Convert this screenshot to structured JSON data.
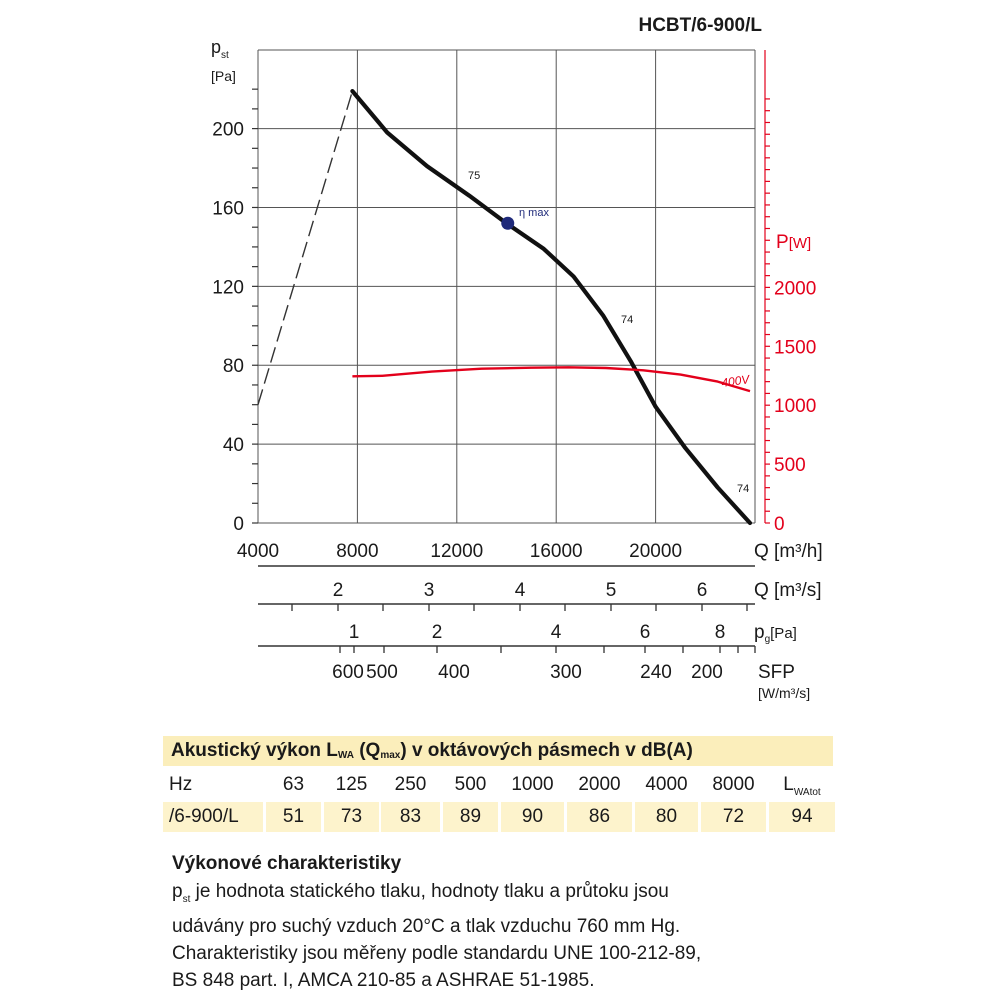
{
  "model_title": "HCBT/6-900/L",
  "chart_data": {
    "type": "line",
    "x_axis": {
      "label": "Q [m³/h]",
      "min": 4000,
      "max": 24000,
      "ticks": [
        4000,
        8000,
        12000,
        16000,
        20000
      ]
    },
    "y_axis_left": {
      "label_main": "p",
      "label_sub": "st",
      "label_unit": "[Pa]",
      "min": 0,
      "max": 220,
      "ticks": [
        0,
        40,
        80,
        120,
        160,
        200
      ]
    },
    "y_axis_right": {
      "label_main": "P",
      "label_unit": "[W]",
      "color": "#e3001b",
      "ticks": [
        0,
        500,
        1000,
        1500,
        2000
      ]
    },
    "series": [
      {
        "role": "pressure",
        "color": "#111111",
        "x": [
          7800,
          9200,
          10800,
          12500,
          14000,
          15500,
          16700,
          17900,
          19000,
          20000,
          21200,
          22500,
          23800
        ],
        "y": [
          219,
          198,
          181,
          166,
          152,
          139,
          125,
          105,
          82,
          59,
          38,
          18,
          0
        ]
      },
      {
        "role": "stall",
        "color": "#333333",
        "dashed": true,
        "x": [
          4000,
          7800
        ],
        "y": [
          60,
          219
        ]
      },
      {
        "role": "power",
        "name": "400V",
        "color": "#e3001b",
        "x": [
          7800,
          9000,
          11000,
          13000,
          15000,
          16500,
          18000,
          19500,
          21000,
          22500,
          23800
        ],
        "y": [
          1245,
          1250,
          1285,
          1310,
          1318,
          1322,
          1316,
          1296,
          1260,
          1200,
          1120
        ]
      }
    ],
    "annotations": [
      {
        "text": "75",
        "x": 14900,
        "y": 174
      },
      {
        "text": "η max",
        "x": 14500,
        "y": 156
      },
      {
        "text": "74",
        "x": 18700,
        "y": 102
      },
      {
        "text": "74",
        "x": 23200,
        "y": 17
      }
    ],
    "eta_max_point": {
      "x": 14050,
      "y": 152,
      "color": "#1f2a7a"
    },
    "grid": true,
    "secondary_scales": [
      {
        "label": "Q [m³/s]",
        "ticks": [
          2,
          3,
          4,
          5,
          6
        ]
      },
      {
        "label_main": "p",
        "label_sub": "g",
        "label_unit": "[Pa]",
        "ticks": [
          1,
          2,
          4,
          6,
          8
        ]
      },
      {
        "label": "SFP",
        "label_unit": "[W/m³/s]",
        "ticks": [
          600,
          500,
          400,
          300,
          240,
          200
        ]
      }
    ]
  },
  "table": {
    "title_pre": "Akustický výkon L",
    "title_sub1": "WA",
    "title_mid": " (Q",
    "title_sub2": "max",
    "title_post": ") v oktávových pásmech v dB(A)",
    "header_label": "Hz",
    "freqs": [
      "63",
      "125",
      "250",
      "500",
      "1000",
      "2000",
      "4000",
      "8000"
    ],
    "total_main": "L",
    "total_sub": "WAtot",
    "row_label": "/6-900/L",
    "values": [
      "51",
      "73",
      "83",
      "89",
      "90",
      "86",
      "80",
      "72"
    ],
    "total_value": "94"
  },
  "description": {
    "heading": "Výkonové charakteristiky",
    "line1_main": "p",
    "line1_sub": "st",
    "line1_rest": " je hodnota statického tlaku, hodnoty tlaku a průtoku jsou",
    "line2": "udávány pro suchý vzduch 20°C a tlak vzduchu 760 mm Hg.",
    "line3": "Charakteristiky jsou měřeny podle standardu UNE 100-212-89,",
    "line4": "BS 848 part. I, AMCA 210-85 a ASHRAE 51-1985."
  }
}
